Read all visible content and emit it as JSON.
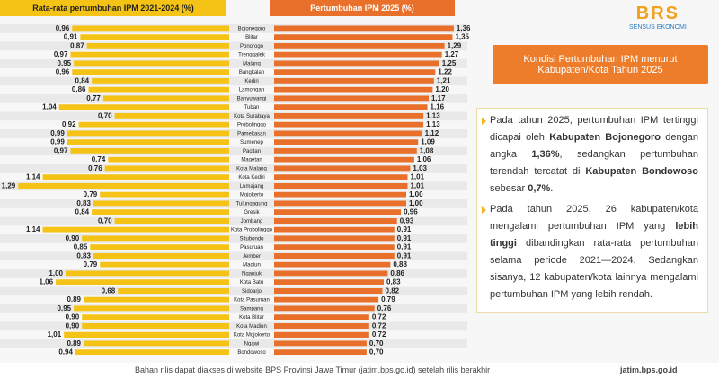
{
  "chart_data": {
    "type": "bar",
    "categories": [
      "Bojonegoro",
      "Blitar",
      "Ponorogo",
      "Trenggalek",
      "Malang",
      "Bangkalan",
      "Kediri",
      "Lamongan",
      "Banyuwangi",
      "Tuban",
      "Kota Surabaya",
      "Probolinggo",
      "Pamekasan",
      "Sumenep",
      "Pacitan",
      "Magetan",
      "Kota Malang",
      "Kota Kediri",
      "Lumajang",
      "Mojokerto",
      "Tulungagung",
      "Gresik",
      "Jombang",
      "Kota Probolinggo",
      "Situbondo",
      "Pasuruan",
      "Jember",
      "Madiun",
      "Nganjuk",
      "Kota Batu",
      "Sidoarjo",
      "Kota Pasuruan",
      "Sampang",
      "Kota Blitar",
      "Kota Madiun",
      "Kota Mojokerto",
      "Ngawi",
      "Bondowoso"
    ],
    "series": [
      {
        "name": "Rata-rata pertumbuhan IPM 2021-2024 (%)",
        "color": "#f4c316",
        "values": [
          0.96,
          0.91,
          0.87,
          0.97,
          0.95,
          0.96,
          0.84,
          0.86,
          0.77,
          1.04,
          0.7,
          0.92,
          0.99,
          0.99,
          0.97,
          0.74,
          0.76,
          1.14,
          1.29,
          0.79,
          0.83,
          0.84,
          0.7,
          1.14,
          0.9,
          0.85,
          0.83,
          0.79,
          1.0,
          1.06,
          0.68,
          0.89,
          0.95,
          0.9,
          0.9,
          1.01,
          0.89,
          0.94
        ],
        "value_labels": [
          "0,96",
          "0,91",
          "0,87",
          "0,97",
          "0,95",
          "0,96",
          "0,84",
          "0,86",
          "0,77",
          "1,04",
          "0,70",
          "0,92",
          "0,99",
          "0,99",
          "0,97",
          "0,74",
          "0,76",
          "1,14",
          "1,29",
          "0,79",
          "0,83",
          "0,84",
          "0,70",
          "1,14",
          "0,90",
          "0,85",
          "0,83",
          "0,79",
          "1,00",
          "1,06",
          "0,68",
          "0,89",
          "0,95",
          "0,90",
          "0,90",
          "1,01",
          "0,89",
          "0,94"
        ]
      },
      {
        "name": "Pertumbuhan IPM 2025 (%)",
        "color": "#e8702a",
        "values": [
          1.36,
          1.35,
          1.29,
          1.27,
          1.25,
          1.22,
          1.21,
          1.2,
          1.17,
          1.16,
          1.13,
          1.13,
          1.12,
          1.09,
          1.08,
          1.06,
          1.03,
          1.01,
          1.01,
          1.0,
          1.0,
          0.96,
          0.93,
          0.91,
          0.91,
          0.91,
          0.91,
          0.88,
          0.86,
          0.83,
          0.82,
          0.79,
          0.76,
          0.72,
          0.72,
          0.72,
          0.7,
          0.7
        ],
        "value_labels": [
          "1,36",
          "1,35",
          "1,29",
          "1,27",
          "1,25",
          "1,22",
          "1,21",
          "1,20",
          "1,17",
          "1,16",
          "1,13",
          "1,13",
          "1,12",
          "1,09",
          "1,08",
          "1,06",
          "1,03",
          "1,01",
          "1,01",
          "1,00",
          "1,00",
          "0,96",
          "0,93",
          "0,91",
          "0,91",
          "0,91",
          "0,91",
          "0,88",
          "0,86",
          "0,83",
          "0,82",
          "0,79",
          "0,76",
          "0,72",
          "0,72",
          "0,72",
          "0,70",
          "0,70"
        ]
      }
    ]
  },
  "panel": {
    "title": "Kondisi Pertumbuhan IPM menurut Kabupaten/Kota Tahun 2025",
    "paragraphs": [
      [
        {
          "text": "Pada tahun 2025, pertumbuhan IPM tertinggi dicapai oleh ",
          "bold": false
        },
        {
          "text": "Kabupaten Bojonegoro",
          "bold": true
        },
        {
          "text": " dengan angka ",
          "bold": false
        },
        {
          "text": "1,36%",
          "bold": true
        },
        {
          "text": ", sedangkan pertumbuhan terendah tercatat di ",
          "bold": false
        },
        {
          "text": "Kabupaten Bondowoso",
          "bold": true
        },
        {
          "text": " sebesar ",
          "bold": false
        },
        {
          "text": "0,7%",
          "bold": true
        },
        {
          "text": ".",
          "bold": false
        }
      ],
      [
        {
          "text": "Pada tahun 2025, 26 kabupaten/kota mengalami pertumbuhan IPM yang ",
          "bold": false
        },
        {
          "text": "lebih tinggi",
          "bold": true
        },
        {
          "text": " dibandingkan rata-rata pertumbuhan selama periode 2021—2024. Sedangkan sisanya, 12 kabupaten/kota lainnya mengalami pertumbuhan IPM yang lebih rendah.",
          "bold": false
        }
      ]
    ]
  },
  "logo": {
    "title": "BRS",
    "subtitle": "SENSUS EKONOMI"
  },
  "footer": {
    "note": "Bahan rilis dapat diakses di website BPS Provinsi Jawa Timur (jatim.bps.go.id) setelah rilis berakhir",
    "url": "jatim.bps.go.id"
  }
}
